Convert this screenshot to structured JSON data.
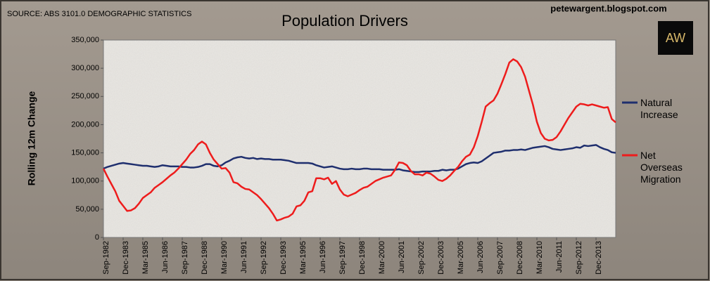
{
  "chart_data": {
    "type": "line",
    "title": "Population Drivers",
    "source": "SOURCE: ABS 3101.0 DEMOGRAPHIC STATISTICS",
    "credit": "petewargent.blogspot.com",
    "logo": "AW",
    "y_label": "Rolling 12m Change",
    "categories": [
      "Sep-1982",
      null,
      null,
      null,
      null,
      "Dec-1983",
      null,
      null,
      null,
      null,
      "Mar-1985",
      null,
      null,
      null,
      null,
      "Jun-1986",
      null,
      null,
      null,
      null,
      "Sep-1987",
      null,
      null,
      null,
      null,
      "Dec-1988",
      null,
      null,
      null,
      null,
      "Mar-1990",
      null,
      null,
      null,
      null,
      "Jun-1991",
      null,
      null,
      null,
      null,
      "Sep-1992",
      null,
      null,
      null,
      null,
      "Dec-1993",
      null,
      null,
      null,
      null,
      "Mar-1995",
      null,
      null,
      null,
      null,
      "Jun-1996",
      null,
      null,
      null,
      null,
      "Sep-1997",
      null,
      null,
      null,
      null,
      "Dec-1998",
      null,
      null,
      null,
      null,
      "Mar-2000",
      null,
      null,
      null,
      null,
      "Jun-2001",
      null,
      null,
      null,
      null,
      "Sep-2002",
      null,
      null,
      null,
      null,
      "Dec-2003",
      null,
      null,
      null,
      null,
      "Mar-2005",
      null,
      null,
      null,
      null,
      "Jun-2006",
      null,
      null,
      null,
      null,
      "Sep-2007",
      null,
      null,
      null,
      null,
      "Dec-2008",
      null,
      null,
      null,
      null,
      "Mar-2010",
      null,
      null,
      null,
      null,
      "Jun-2011",
      null,
      null,
      null,
      null,
      "Sep-2012",
      null,
      null,
      null,
      null,
      "Dec-2013",
      null,
      null,
      null,
      null,
      null
    ],
    "series": [
      {
        "name": "Natural Increase",
        "color": "#1f2f6e",
        "values": [
          122000,
          125000,
          127000,
          129000,
          131000,
          132000,
          131000,
          130000,
          129000,
          128000,
          127000,
          127000,
          126000,
          125000,
          126000,
          128000,
          127000,
          126000,
          126000,
          126000,
          125000,
          125000,
          124000,
          124000,
          125000,
          127000,
          130000,
          130000,
          127000,
          126000,
          128000,
          133000,
          136000,
          140000,
          142000,
          143000,
          141000,
          140000,
          141000,
          139000,
          140000,
          139000,
          139000,
          138000,
          138000,
          138000,
          137000,
          136000,
          134000,
          132000,
          132000,
          132000,
          132000,
          131000,
          128000,
          126000,
          124000,
          125000,
          126000,
          124000,
          122000,
          121000,
          121000,
          122000,
          121000,
          121000,
          122000,
          122000,
          121000,
          121000,
          121000,
          120000,
          120000,
          120000,
          120000,
          121000,
          119000,
          118000,
          117000,
          116000,
          116000,
          117000,
          117000,
          117000,
          118000,
          118000,
          120000,
          119000,
          120000,
          120000,
          122000,
          126000,
          130000,
          132000,
          133000,
          132000,
          135000,
          140000,
          145000,
          150000,
          151000,
          152000,
          154000,
          154000,
          155000,
          155000,
          156000,
          155000,
          157000,
          159000,
          160000,
          161000,
          162000,
          160000,
          157000,
          156000,
          155000,
          156000,
          157000,
          158000,
          160000,
          159000,
          163000,
          162000,
          163000,
          164000,
          160000,
          157000,
          155000,
          151000,
          150000
        ]
      },
      {
        "name": "Net Overseas Migration",
        "color": "#ee1c1c",
        "values": [
          122000,
          108000,
          95000,
          82000,
          65000,
          56000,
          47000,
          48000,
          52000,
          60000,
          70000,
          75000,
          80000,
          88000,
          93000,
          98000,
          104000,
          110000,
          115000,
          122000,
          130000,
          138000,
          148000,
          155000,
          165000,
          170000,
          165000,
          150000,
          138000,
          130000,
          122000,
          123000,
          115000,
          98000,
          96000,
          90000,
          86000,
          85000,
          80000,
          75000,
          68000,
          60000,
          52000,
          42000,
          30000,
          32000,
          35000,
          37000,
          42000,
          55000,
          57000,
          65000,
          80000,
          82000,
          105000,
          105000,
          103000,
          106000,
          95000,
          100000,
          85000,
          76000,
          73000,
          76000,
          79000,
          84000,
          88000,
          90000,
          95000,
          100000,
          103000,
          106000,
          108000,
          110000,
          120000,
          133000,
          132000,
          128000,
          118000,
          112000,
          112000,
          110000,
          115000,
          113000,
          108000,
          102000,
          100000,
          104000,
          110000,
          118000,
          125000,
          135000,
          143000,
          147000,
          160000,
          180000,
          205000,
          232000,
          238000,
          243000,
          255000,
          272000,
          290000,
          310000,
          316000,
          312000,
          302000,
          285000,
          260000,
          235000,
          205000,
          185000,
          175000,
          172000,
          173000,
          178000,
          188000,
          200000,
          212000,
          222000,
          232000,
          237000,
          236000,
          234000,
          236000,
          234000,
          232000,
          230000,
          231000,
          210000,
          204000
        ]
      }
    ],
    "ylim": [
      0,
      350000
    ],
    "yticks": [
      0,
      {
        "value": 50000,
        "label": "50,000"
      },
      {
        "value": 100000,
        "label": "100,000"
      },
      {
        "value": 150000,
        "label": "150,000"
      },
      {
        "value": 200000,
        "label": "200,000"
      },
      {
        "value": 250000,
        "label": "250,000"
      },
      {
        "value": 300000,
        "label": "300,000"
      },
      {
        "value": 350000,
        "label": "350,000"
      }
    ],
    "legend": "right"
  }
}
